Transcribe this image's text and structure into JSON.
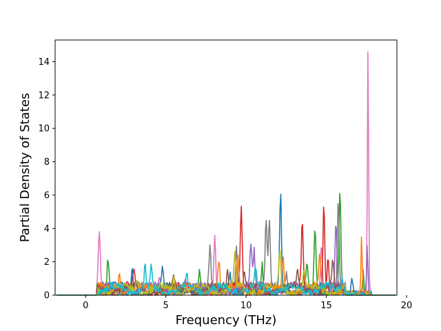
{
  "chart_data": {
    "type": "line",
    "title": "",
    "xlabel": "Frequency (THz)",
    "ylabel": "Partial Density of States",
    "xlim": [
      -1.9,
      19.4
    ],
    "ylim": [
      0,
      15.3
    ],
    "xticks": [
      0,
      5,
      10,
      15,
      20
    ],
    "yticks": [
      0,
      2,
      4,
      6,
      8,
      10,
      12,
      14
    ],
    "grid": false,
    "legend": "none",
    "colors": [
      "#1f77b4",
      "#ff7f0e",
      "#2ca02c",
      "#d62728",
      "#9467bd",
      "#8c564b",
      "#e377c2",
      "#7f7f7f",
      "#bcbd22",
      "#17becf"
    ],
    "series": [
      {
        "color": "#e377c2",
        "peaks": [
          [
            0.85,
            3.45
          ],
          [
            8.05,
            3.25
          ],
          [
            17.6,
            14.65
          ],
          [
            14.7,
            2.4
          ],
          [
            4.6,
            0.9
          ]
        ]
      },
      {
        "color": "#2ca02c",
        "peaks": [
          [
            1.4,
            1.85
          ],
          [
            7.1,
            1.3
          ],
          [
            11.0,
            1.7
          ],
          [
            14.3,
            3.6
          ],
          [
            15.85,
            6.3
          ],
          [
            17.3,
            1.5
          ],
          [
            13.8,
            1.6
          ]
        ]
      },
      {
        "color": "#7f7f7f",
        "peaks": [
          [
            7.75,
            2.45
          ],
          [
            9.4,
            2.85
          ],
          [
            11.25,
            4.15
          ],
          [
            11.45,
            4.0
          ],
          [
            15.75,
            5.15
          ],
          [
            12.5,
            1.1
          ]
        ]
      },
      {
        "color": "#d62728",
        "peaks": [
          [
            9.7,
            4.7
          ],
          [
            13.5,
            3.8
          ],
          [
            14.85,
            5.35
          ],
          [
            15.1,
            2.0
          ],
          [
            3.0,
            1.0
          ]
        ]
      },
      {
        "color": "#1f77b4",
        "peaks": [
          [
            2.9,
            1.35
          ],
          [
            4.8,
            1.15
          ],
          [
            12.15,
            5.75
          ],
          [
            16.6,
            0.9
          ],
          [
            9.0,
            0.9
          ]
        ]
      },
      {
        "color": "#9467bd",
        "peaks": [
          [
            10.3,
            2.65
          ],
          [
            10.5,
            2.2
          ],
          [
            15.6,
            3.8
          ],
          [
            17.55,
            3.05
          ],
          [
            6.2,
            0.8
          ]
        ]
      },
      {
        "color": "#ff7f0e",
        "peaks": [
          [
            2.1,
            1.05
          ],
          [
            8.3,
            1.75
          ],
          [
            9.5,
            2.0
          ],
          [
            17.2,
            3.55
          ],
          [
            12.3,
            2.0
          ],
          [
            14.6,
            2.0
          ]
        ]
      },
      {
        "color": "#8c564b",
        "peaks": [
          [
            8.85,
            1.35
          ],
          [
            9.9,
            1.15
          ],
          [
            13.2,
            1.0
          ],
          [
            15.4,
            1.8
          ],
          [
            5.5,
            0.7
          ]
        ]
      },
      {
        "color": "#bcbd22",
        "peaks": [
          [
            5.5,
            1.05
          ],
          [
            9.3,
            1.9
          ],
          [
            12.1,
            2.45
          ],
          [
            13.6,
            1.2
          ],
          [
            3.2,
            0.9
          ]
        ]
      },
      {
        "color": "#17becf",
        "peaks": [
          [
            3.7,
            1.3
          ],
          [
            4.1,
            1.2
          ],
          [
            6.3,
            0.85
          ],
          [
            10.6,
            1.1
          ],
          [
            16.0,
            0.9
          ]
        ]
      }
    ]
  }
}
